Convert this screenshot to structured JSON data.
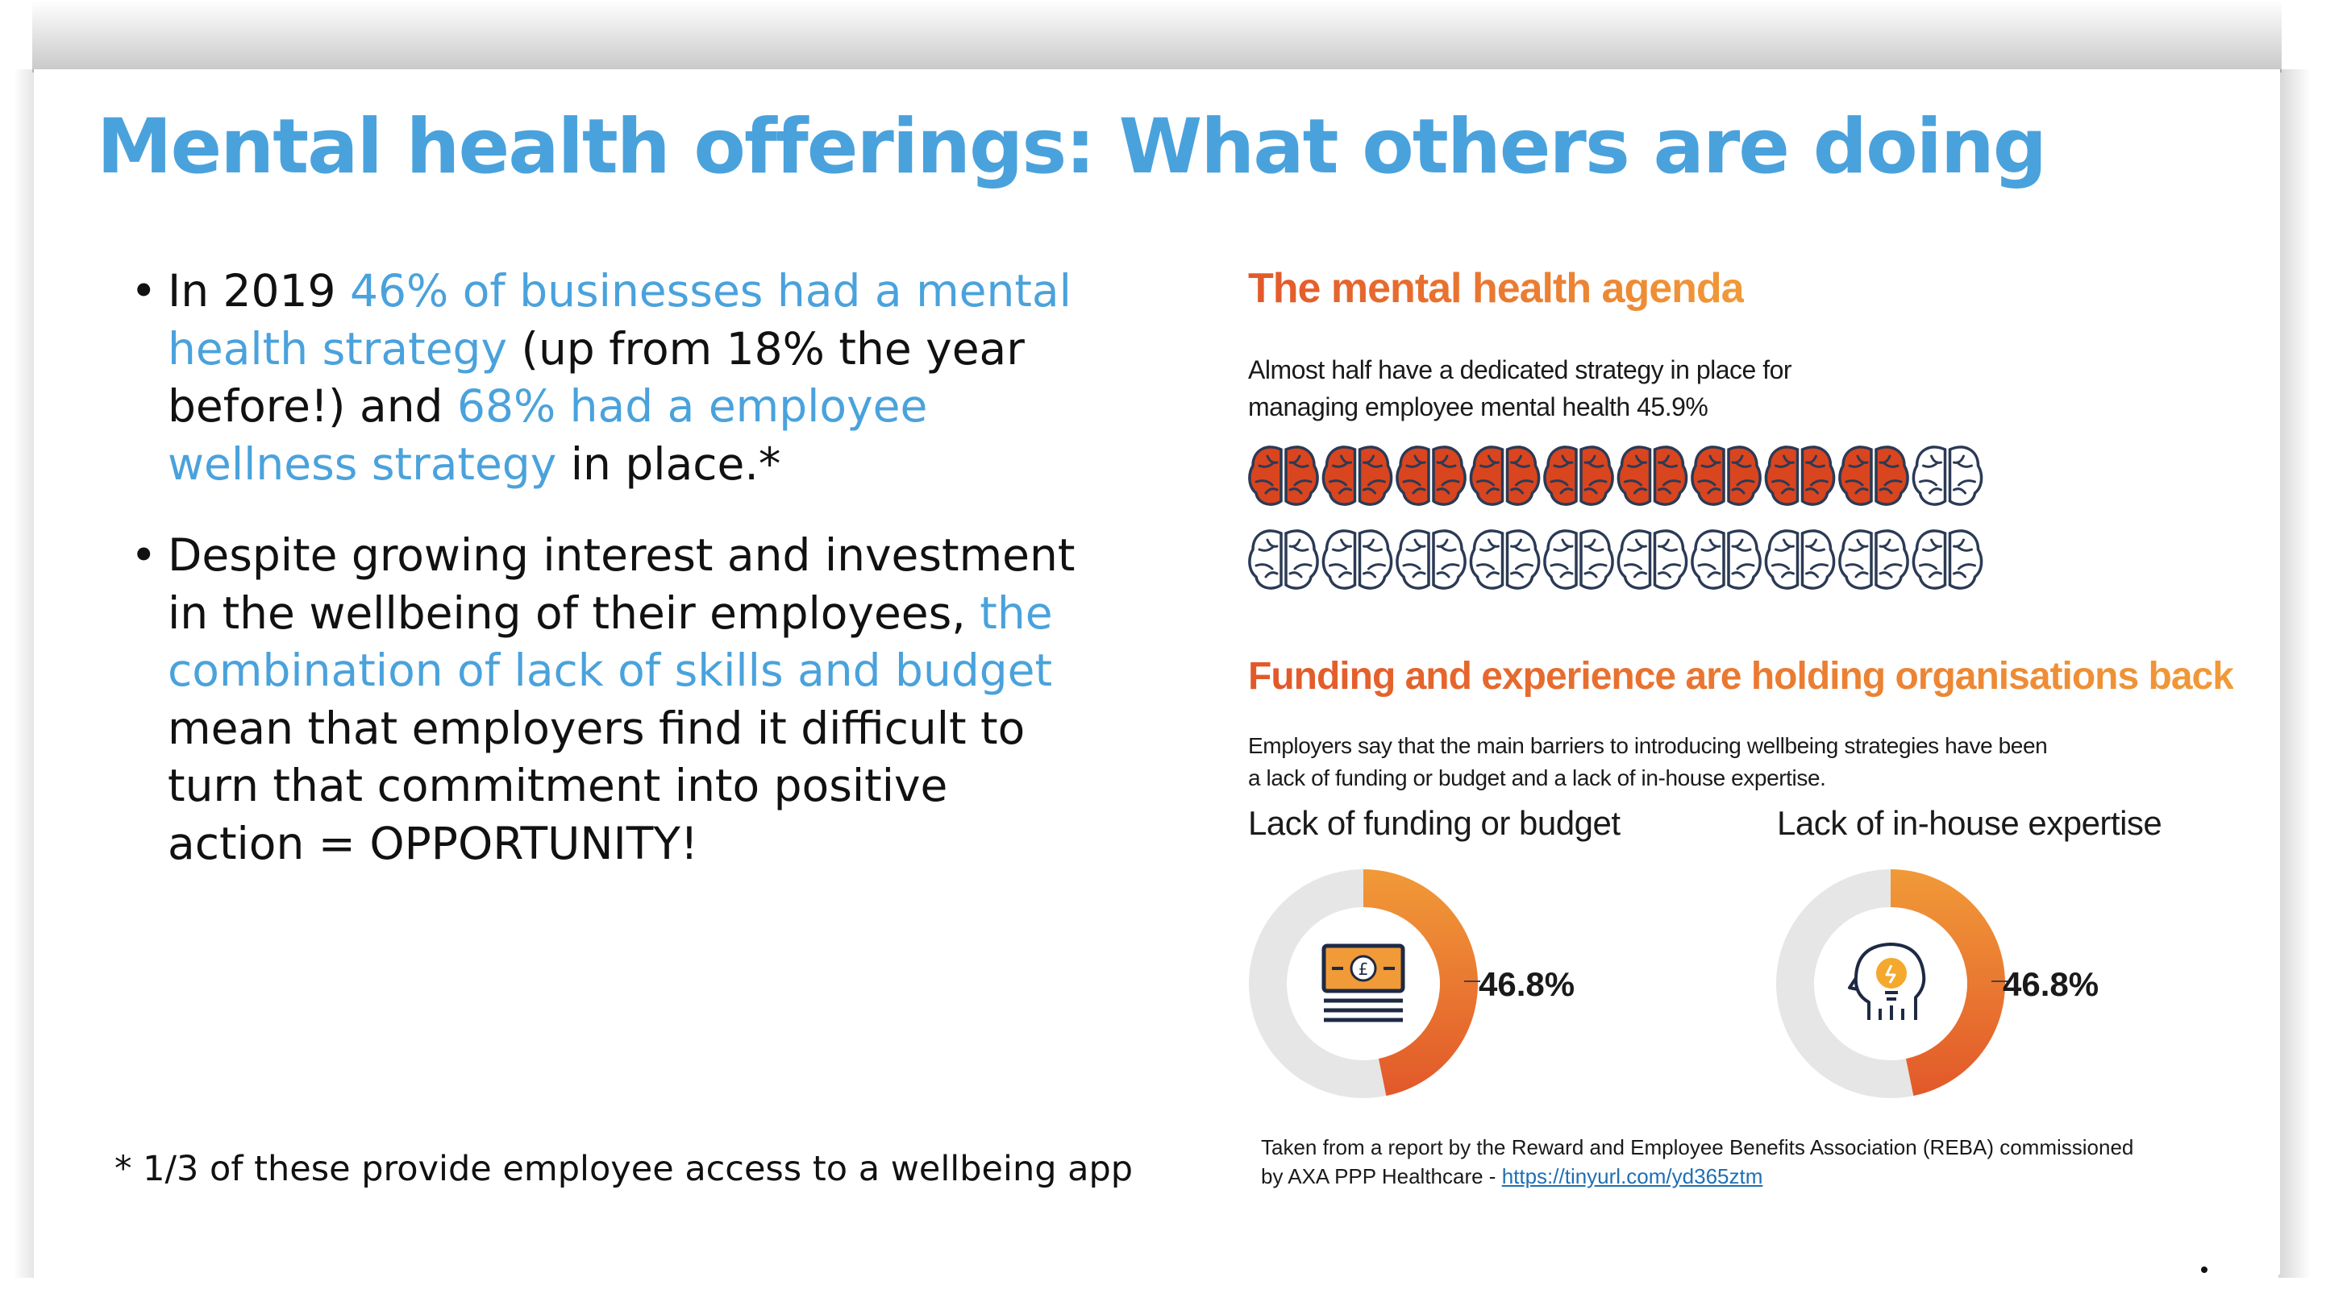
{
  "slide": {
    "title": "Mental health offerings: What others are doing",
    "bullets": [
      {
        "marker": "•",
        "parts": [
          {
            "text": "In 2019  ",
            "highlight": false
          },
          {
            "text": "46% of businesses had a mental health strategy",
            "highlight": true
          },
          {
            "text": " (up from 18% the year before!) and ",
            "highlight": false
          },
          {
            "text": "68% had a employee wellness strategy",
            "highlight": true
          },
          {
            "text": " in place.*",
            "highlight": false
          }
        ]
      },
      {
        "marker": "•",
        "parts": [
          {
            "text": "Despite growing interest and investment in the wellbeing of their employees, ",
            "highlight": false
          },
          {
            "text": "the combination of lack of skills and budget",
            "highlight": true
          },
          {
            "text": " mean that employers find it difficult to turn that commitment into positive action = OPPORTUNITY!",
            "highlight": false
          }
        ]
      }
    ],
    "footnote": "* 1/3 of these provide employee access to a wellbeing app"
  },
  "infographic": {
    "agenda_heading": "The mental health agenda",
    "agenda_text_line1": "Almost half have a dedicated strategy in place for",
    "agenda_text_line2": "managing employee mental health 45.9%",
    "brain_icons": {
      "total": 20,
      "filled": 9,
      "filled_color": "#D9451F",
      "outline_color": "#2B3A55"
    },
    "funding_heading": "Funding and experience are holding organisations back",
    "funding_text_line1": "Employers say that the main barriers to introducing wellbeing strategies have been",
    "funding_text_line2": "a lack of funding or budget and a lack of in-house expertise.",
    "barriers": [
      {
        "label": "Lack of funding or budget",
        "value_label": "46.8%",
        "value": 46.8,
        "icon": "money-icon"
      },
      {
        "label": "Lack of in-house expertise",
        "value_label": "46.8%",
        "value": 46.8,
        "icon": "head-lightbulb-icon"
      }
    ],
    "source_line1": "Taken from a report by the Reward and Employee Benefits Association (REBA) commissioned",
    "source_line2": "by AXA PPP Healthcare  - ",
    "source_link": "https://tinyurl.com/yd365ztm"
  },
  "colors": {
    "title_blue": "#4AA2DC",
    "orange_light": "#F19A38",
    "orange_dark": "#E2582A",
    "donut_grey": "#E6E6E6"
  }
}
